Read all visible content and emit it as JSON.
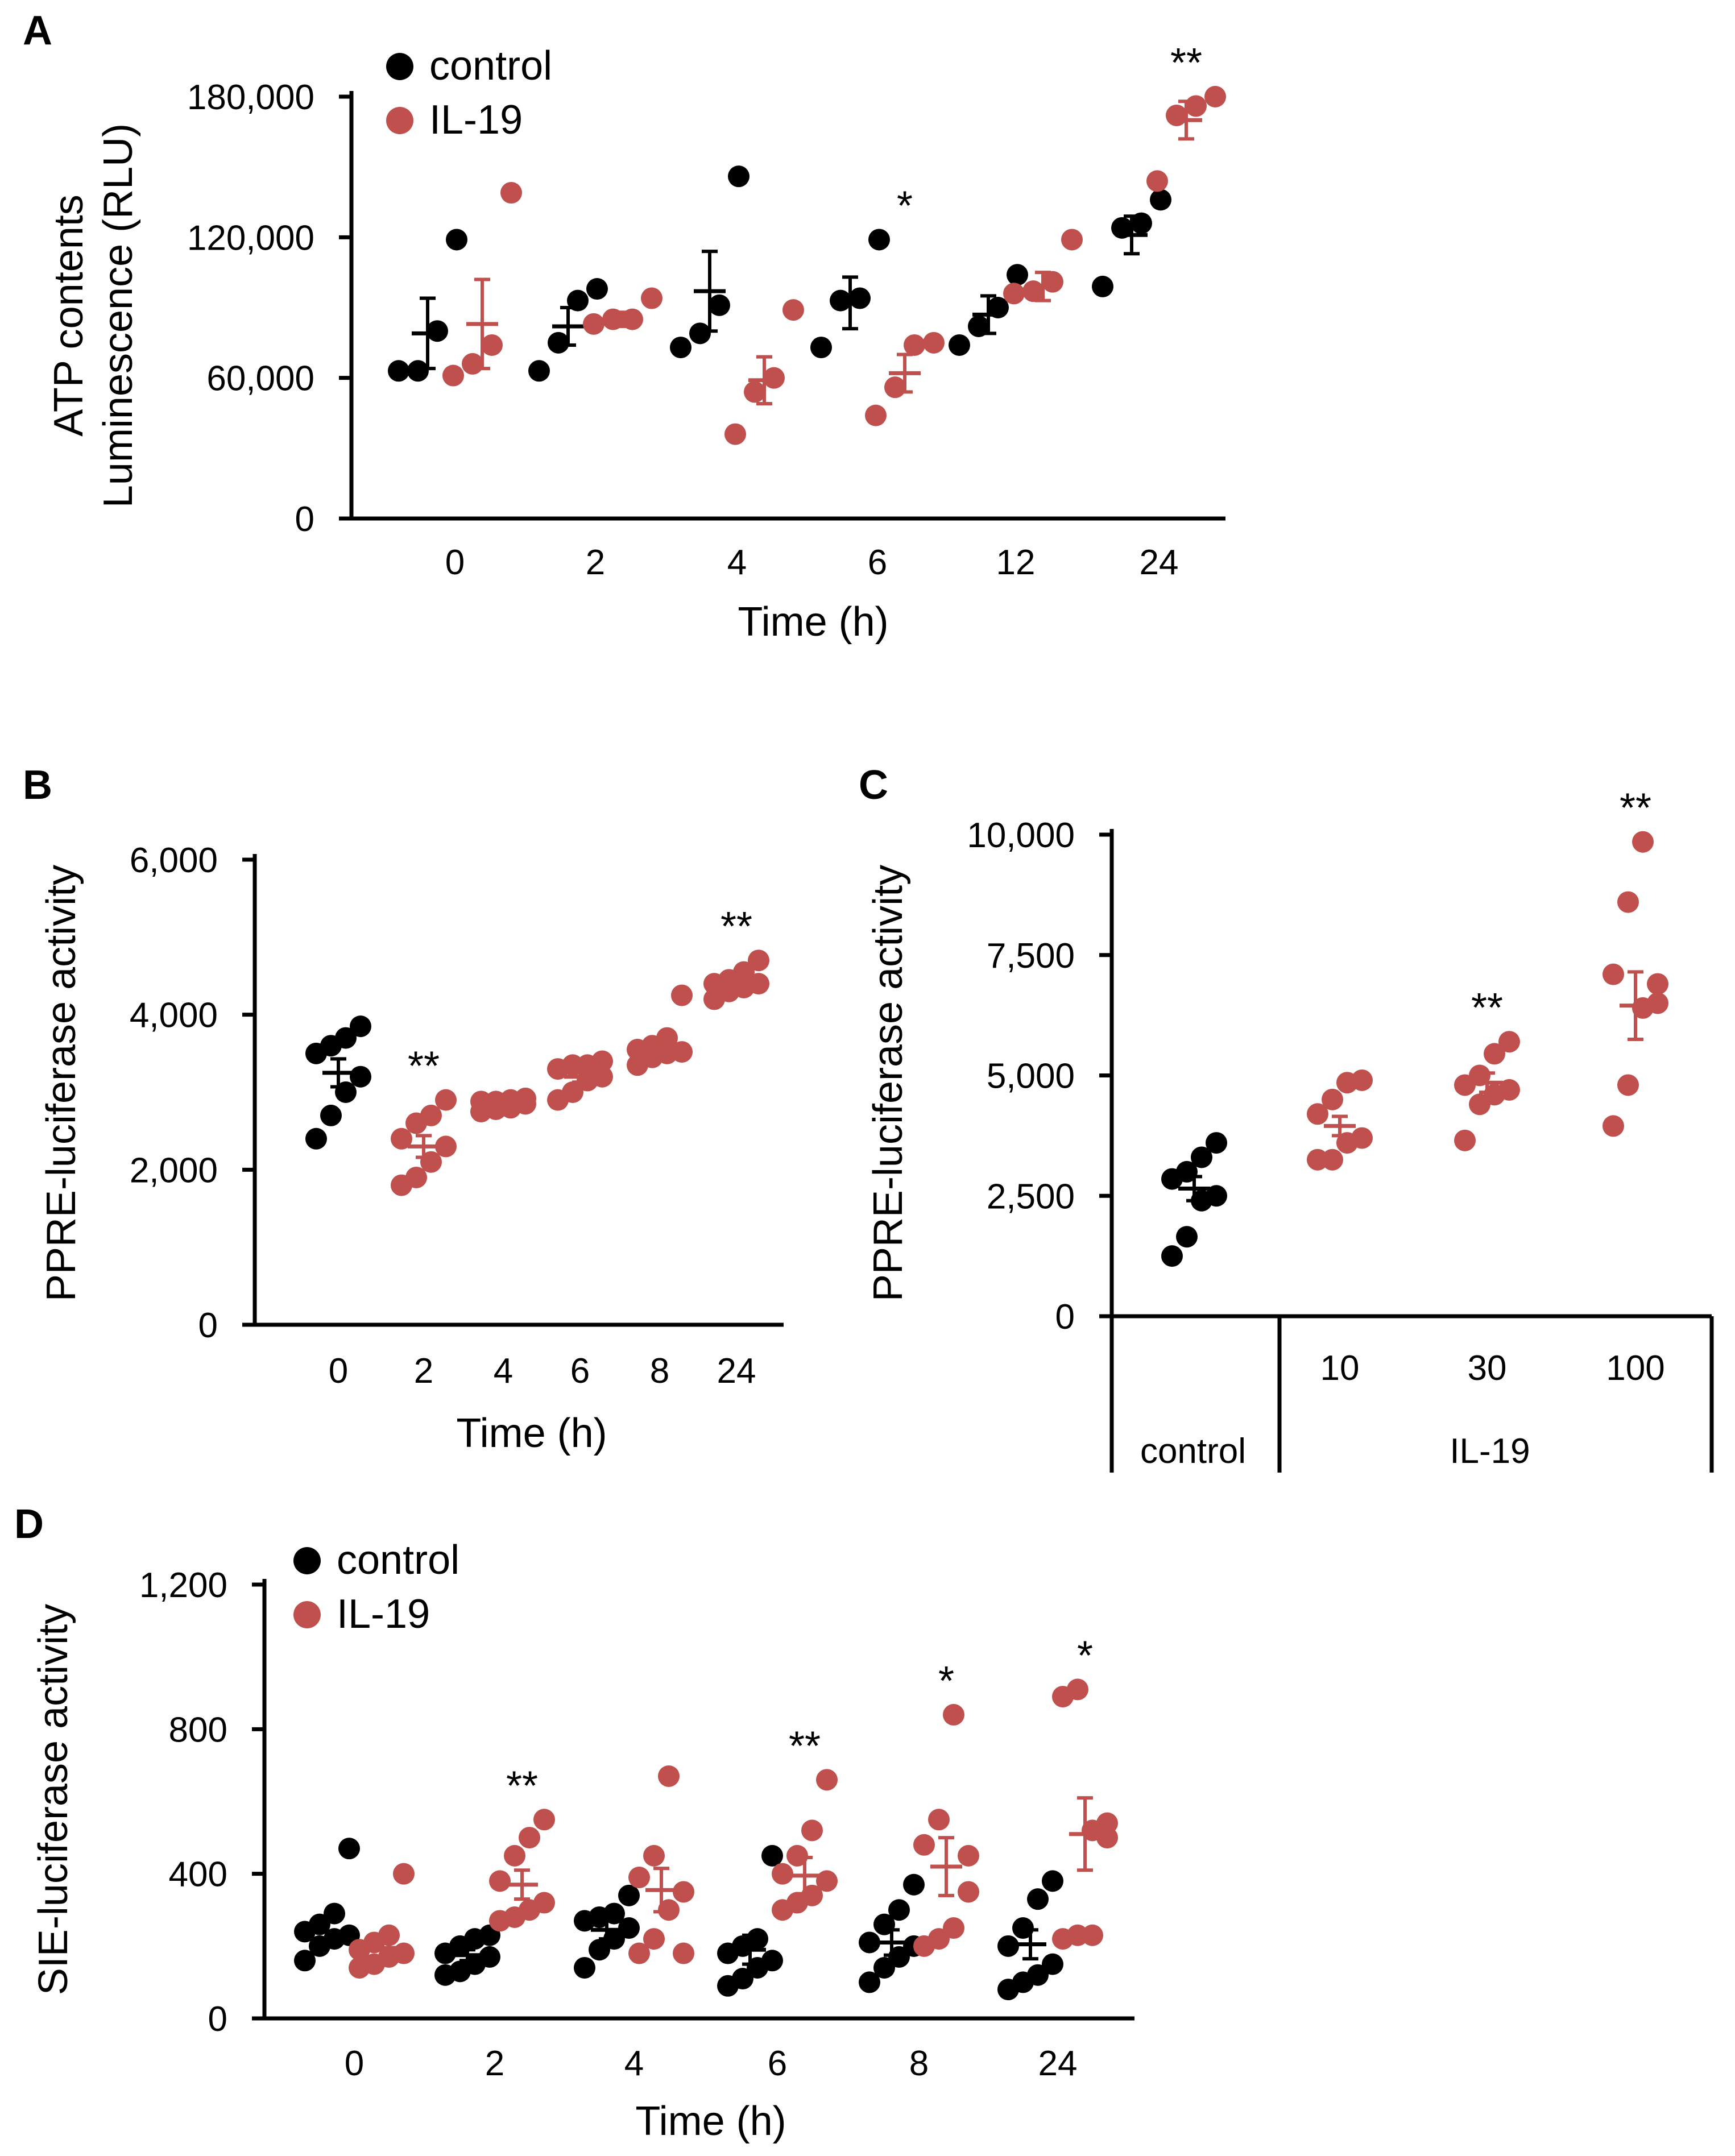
{
  "colors": {
    "control": "#000000",
    "il19": "#C0504D"
  },
  "chart_data": [
    {
      "panel": "A",
      "type": "scatter",
      "ylabel": "ATP contents",
      "ylabel2": "Luminescence (RLU)",
      "xlabel": "Time (h)",
      "ylim": [
        0,
        180000
      ],
      "yticks": [
        "0",
        "60,000",
        "120,000",
        "180,000"
      ],
      "yticks_values": [
        0,
        60000,
        120000,
        180000
      ],
      "categories": [
        "0",
        "2",
        "4",
        "6",
        "12",
        "24"
      ],
      "legend": [
        "control",
        "IL-19"
      ],
      "series": [
        {
          "name": "control",
          "points": [
            [
              63000,
              63000,
              80000,
              119000
            ],
            [
              63000,
              75000,
              93000,
              98000
            ],
            [
              73000,
              79000,
              91000,
              146000
            ],
            [
              73000,
              93000,
              94000,
              119000
            ],
            [
              74000,
              82000,
              90000,
              104000
            ],
            [
              99000,
              124000,
              126000,
              136000
            ]
          ],
          "mean": [
            79000,
            82000,
            97000,
            92000,
            87000,
            121000
          ],
          "sem": [
            15000,
            8000,
            17000,
            11000,
            8000,
            8000
          ]
        },
        {
          "name": "IL-19",
          "points": [
            [
              61000,
              66000,
              74000,
              139000
            ],
            [
              83000,
              85000,
              85000,
              94000
            ],
            [
              36000,
              54000,
              60000,
              89000
            ],
            [
              44000,
              56000,
              74000,
              75000
            ],
            [
              96000,
              97000,
              101000,
              119000
            ],
            [
              144000,
              172000,
              176000,
              180000
            ]
          ],
          "mean": [
            83000,
            85000,
            59000,
            62000,
            99000,
            170000
          ],
          "sem": [
            19000,
            3000,
            10000,
            8000,
            6000,
            8000
          ]
        }
      ],
      "significance": [
        {
          "group": "6",
          "label": "*"
        },
        {
          "group": "24",
          "label": "**"
        }
      ]
    },
    {
      "panel": "B",
      "type": "scatter",
      "ylabel": "PPRE-luciferase activity",
      "xlabel": "Time (h)",
      "ylim": [
        0,
        6000
      ],
      "yticks": [
        "0",
        "2,000",
        "4,000",
        "6,000"
      ],
      "yticks_values": [
        0,
        2000,
        4000,
        6000
      ],
      "categories": [
        "0",
        "2",
        "4",
        "6",
        "8",
        "24"
      ],
      "series": [
        {
          "name": "control",
          "points": [
            [
              2400,
              2700,
              3000,
              3200,
              3500,
              3600,
              3700,
              3850
            ]
          ],
          "mean": [
            3250
          ],
          "sem": [
            180
          ]
        },
        {
          "name": "IL-19",
          "points": [
            [
              1800,
              1900,
              2100,
              2300,
              2400,
              2600,
              2700,
              2900
            ],
            [
              2750,
              2780,
              2800,
              2850,
              2880,
              2880,
              2900,
              2920
            ],
            [
              2900,
              3000,
              3150,
              3200,
              3300,
              3350,
              3350,
              3400
            ],
            [
              3350,
              3450,
              3500,
              3520,
              3550,
              3600,
              3700,
              4250
            ],
            [
              4200,
              4300,
              4350,
              4400,
              4400,
              4450,
              4550,
              4700
            ]
          ],
          "mean": [
            2300,
            2840,
            3200,
            3550,
            4450
          ],
          "sem": [
            140,
            30,
            70,
            80,
            40
          ],
          "category_offset": 1
        }
      ],
      "significance": [
        {
          "group": "2",
          "label": "**"
        },
        {
          "group": "24",
          "label": "**"
        }
      ]
    },
    {
      "panel": "C",
      "type": "scatter",
      "ylabel": "PPRE-luciferase activity",
      "ylim": [
        0,
        10000
      ],
      "yticks": [
        "0",
        "2,500",
        "5,000",
        "7,500",
        "10,000"
      ],
      "yticks_values": [
        0,
        2500,
        5000,
        7500,
        10000
      ],
      "categories": [
        "",
        "10",
        "30",
        "100"
      ],
      "group_labels": [
        "control",
        "IL-19"
      ],
      "series": [
        {
          "name": "control",
          "points": [
            [
              1250,
              1650,
              2400,
              2500,
              2850,
              3000,
              3300,
              3600
            ]
          ],
          "mean": [
            2650
          ],
          "sem": [
            250
          ]
        },
        {
          "name": "IL-19",
          "points": [
            [
              3250,
              3250,
              3600,
              3700,
              4200,
              4500,
              4850,
              4900
            ],
            [
              3650,
              4400,
              4600,
              4700,
              4800,
              5000,
              5450,
              5700
            ],
            [
              3950,
              4800,
              6400,
              6900,
              7100,
              8600,
              9850,
              6500
            ]
          ],
          "mean": [
            3950,
            4850,
            6450
          ],
          "sem": [
            200,
            200,
            700
          ],
          "category_offset": 1
        }
      ],
      "significance": [
        {
          "group": "30",
          "label": "**"
        },
        {
          "group": "100",
          "label": "**"
        }
      ]
    },
    {
      "panel": "D",
      "type": "scatter",
      "ylabel": "SIE-luciferase activity",
      "xlabel": "Time (h)",
      "ylim": [
        0,
        1200
      ],
      "yticks": [
        "0",
        "400",
        "800",
        "1,200"
      ],
      "yticks_values": [
        0,
        400,
        800,
        1200
      ],
      "categories": [
        "0",
        "2",
        "4",
        "6",
        "8",
        "24"
      ],
      "legend": [
        "control",
        "IL-19"
      ],
      "series": [
        {
          "name": "control",
          "points": [
            [
              160,
              200,
              220,
              230,
              240,
              260,
              290,
              470
            ],
            [
              120,
              130,
              150,
              170,
              180,
              200,
              220,
              230
            ],
            [
              140,
              190,
              220,
              250,
              270,
              280,
              290,
              340
            ],
            [
              90,
              110,
              140,
              160,
              180,
              200,
              220,
              450
            ],
            [
              100,
              140,
              170,
              200,
              210,
              260,
              300,
              370
            ],
            [
              80,
              100,
              120,
              150,
              200,
              250,
              330,
              380
            ]
          ],
          "mean": [
            240,
            175,
            245,
            190,
            210,
            205
          ],
          "sem": [
            30,
            15,
            25,
            40,
            35,
            40
          ]
        },
        {
          "name": "IL-19",
          "points": [
            [
              140,
              150,
              170,
              180,
              190,
              210,
              230,
              400
            ],
            [
              270,
              280,
              300,
              320,
              380,
              450,
              500,
              550
            ],
            [
              180,
              220,
              300,
              350,
              390,
              450,
              670,
              180
            ],
            [
              300,
              320,
              340,
              380,
              400,
              450,
              520,
              660
            ],
            [
              200,
              220,
              250,
              450,
              480,
              550,
              840,
              350
            ],
            [
              220,
              230,
              520,
              540,
              890,
              910,
              230,
              500
            ]
          ],
          "mean": [
            195,
            370,
            355,
            395,
            420,
            510
          ],
          "sem": [
            25,
            40,
            60,
            50,
            80,
            100
          ]
        }
      ],
      "significance": [
        {
          "group": "2",
          "label": "**"
        },
        {
          "group": "6",
          "label": "**"
        },
        {
          "group": "8",
          "label": "*"
        },
        {
          "group": "24",
          "label": "*"
        }
      ]
    }
  ],
  "panels": {
    "A": "A",
    "B": "B",
    "C": "C",
    "D": "D"
  }
}
